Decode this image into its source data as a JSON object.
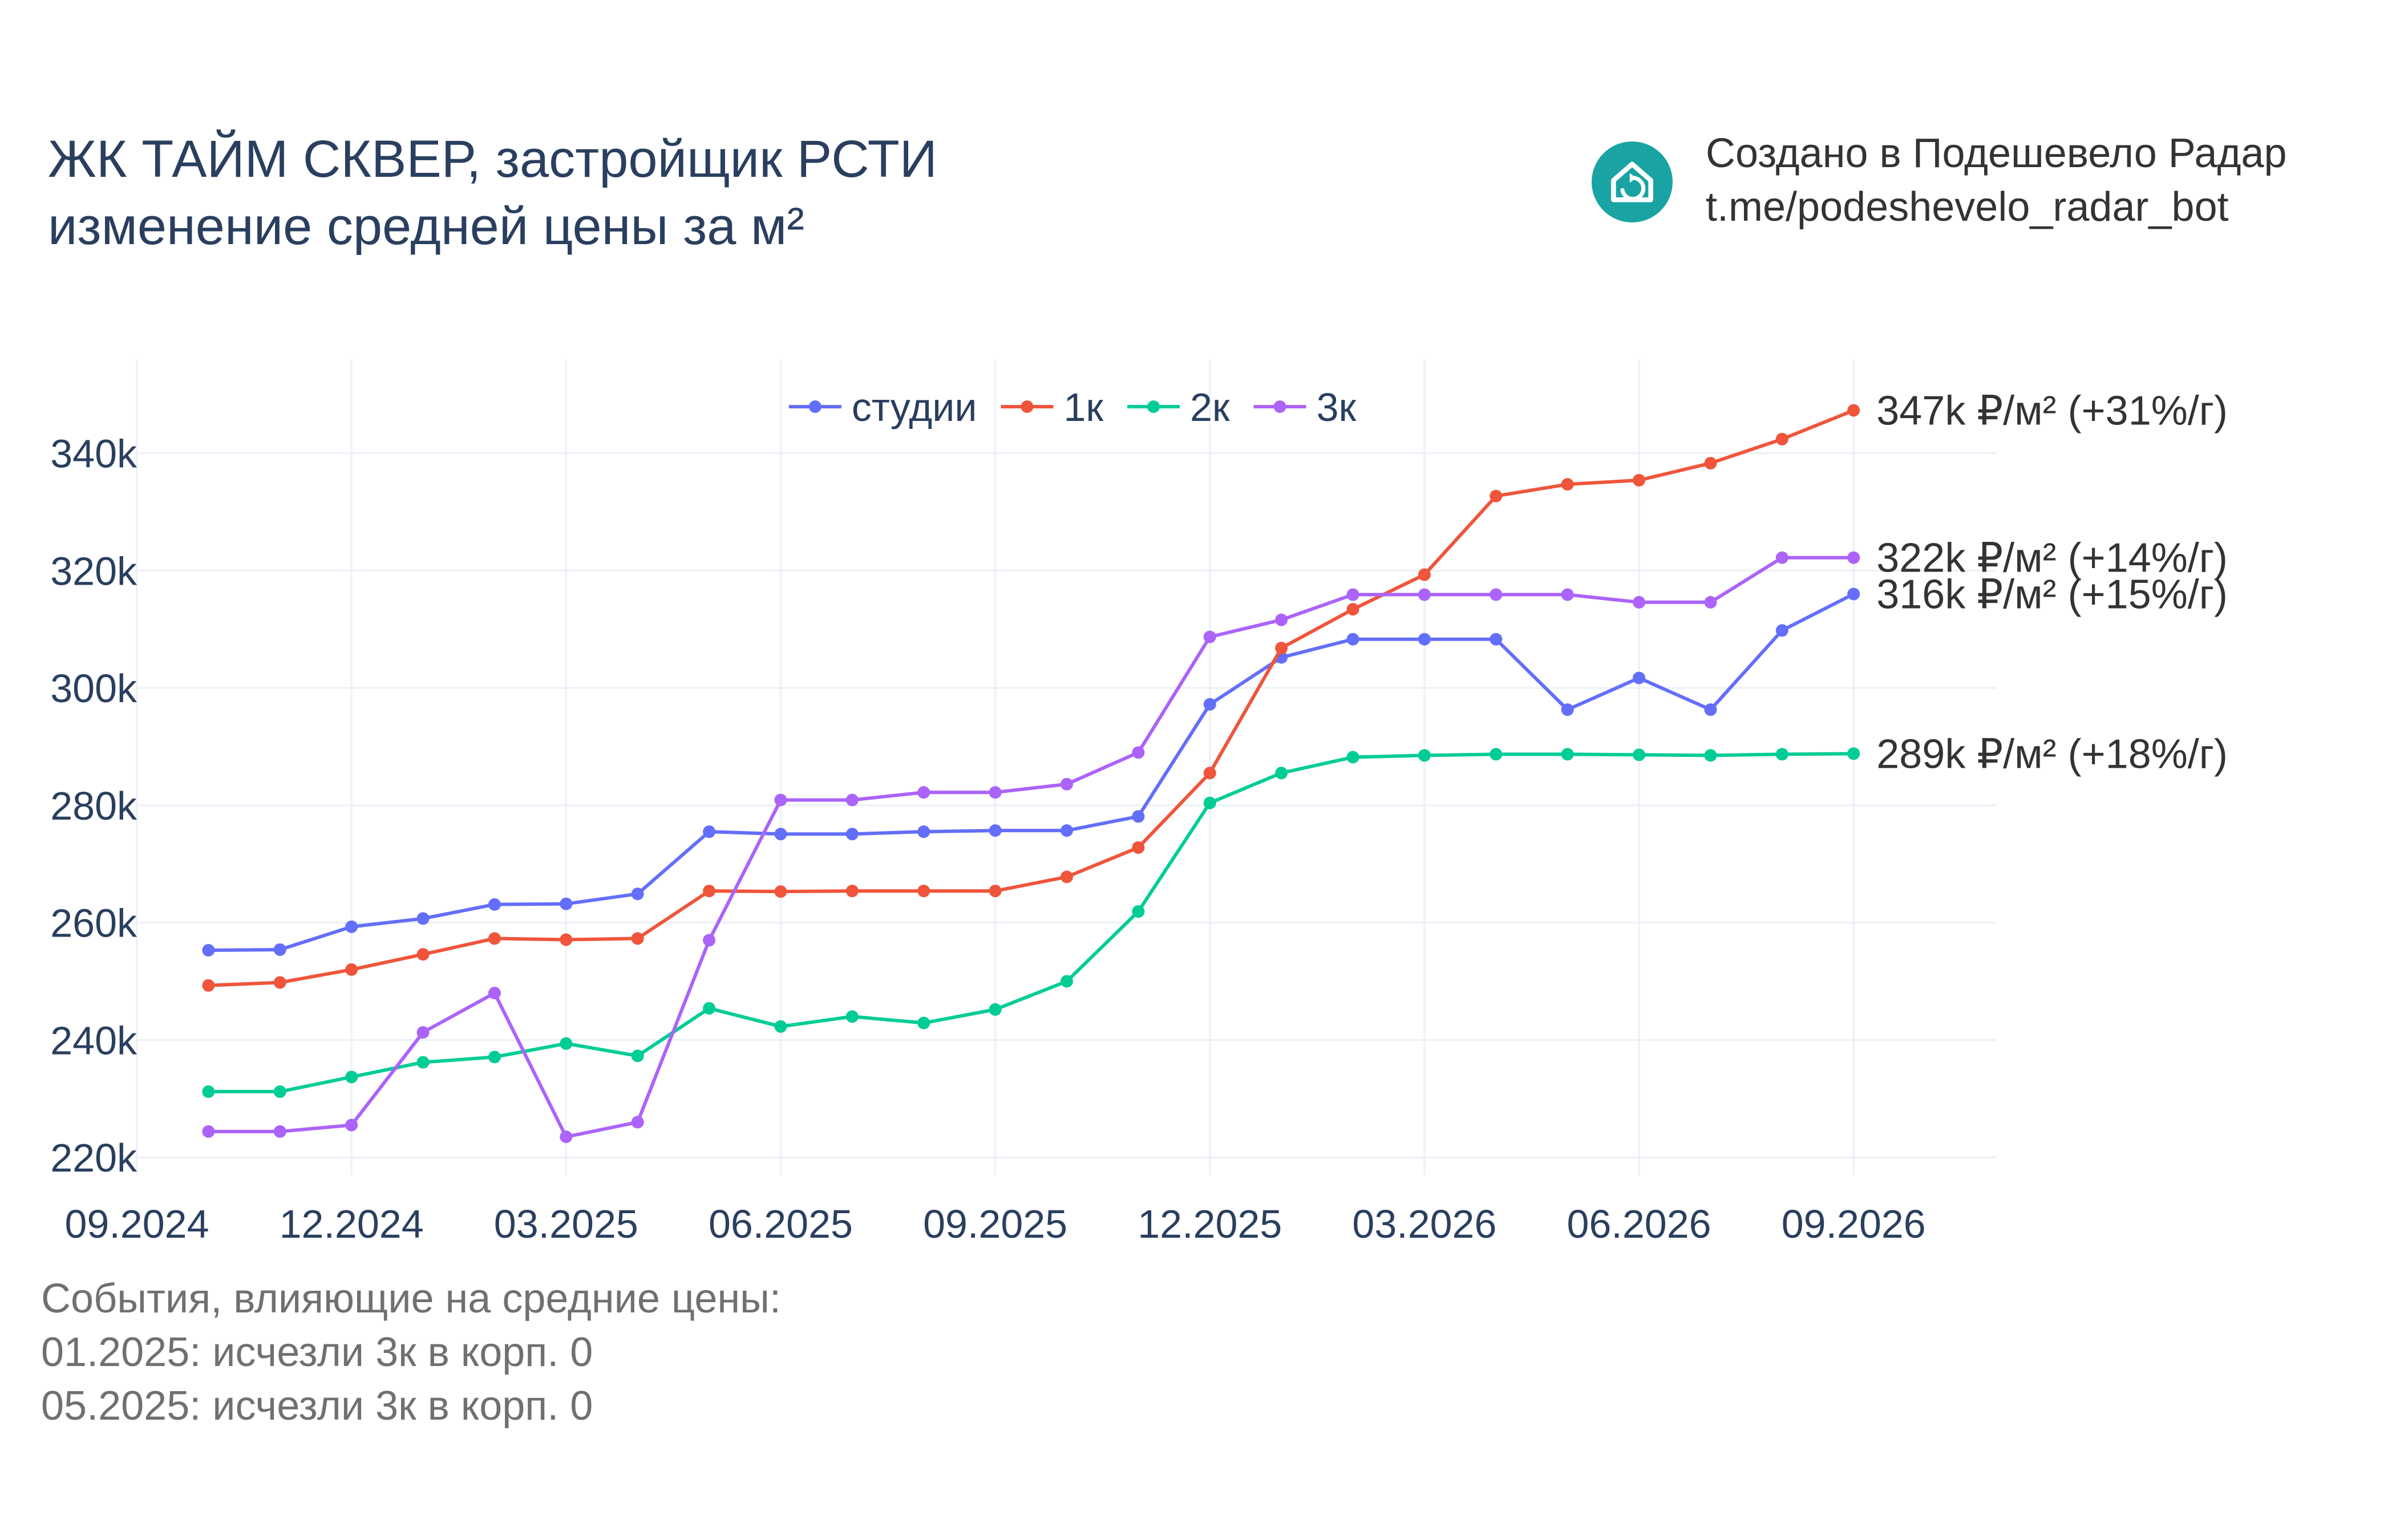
{
  "title": {
    "line1": "ЖК ТАЙМ СКВЕР, застройщик РСТИ",
    "line2": "изменение средней цены за м²"
  },
  "brand": {
    "line1": "Создано в Подешевело Радар",
    "line2": "t.me/podeshevelo_radar_bot",
    "icon": "house-icon",
    "color": "#1aa3a3"
  },
  "events": {
    "heading": "События, влияющие на средние цены:",
    "items": [
      "01.2025: исчезли 3к в корп. 0",
      "05.2025: исчезли 3к в корп. 0"
    ]
  },
  "chart_data": {
    "type": "line",
    "x": [
      "2024-10",
      "2024-11",
      "2024-12",
      "2025-01",
      "2025-02",
      "2025-03",
      "2025-04",
      "2025-05",
      "2025-06",
      "2025-07",
      "2025-08",
      "2025-09",
      "2025-10",
      "2025-11",
      "2025-12",
      "2026-01",
      "2026-02",
      "2026-03",
      "2026-04",
      "2026-05",
      "2026-06",
      "2026-07",
      "2026-08",
      "2026-09"
    ],
    "x_ticks": [
      {
        "x": "2024-09",
        "label": "09.2024"
      },
      {
        "x": "2024-12",
        "label": "12.2024"
      },
      {
        "x": "2025-03",
        "label": "03.2025"
      },
      {
        "x": "2025-06",
        "label": "06.2025"
      },
      {
        "x": "2025-09",
        "label": "09.2025"
      },
      {
        "x": "2025-12",
        "label": "12.2025"
      },
      {
        "x": "2026-03",
        "label": "03.2026"
      },
      {
        "x": "2026-06",
        "label": "06.2026"
      },
      {
        "x": "2026-09",
        "label": "09.2026"
      }
    ],
    "y_ticks": [
      {
        "value": 220000,
        "label": "220k"
      },
      {
        "value": 240000,
        "label": "240k"
      },
      {
        "value": 260000,
        "label": "260k"
      },
      {
        "value": 280000,
        "label": "280k"
      },
      {
        "value": 300000,
        "label": "300k"
      },
      {
        "value": 320000,
        "label": "320k"
      },
      {
        "value": 340000,
        "label": "340k"
      }
    ],
    "xlim": [
      "2024-09",
      "2026-11"
    ],
    "ylim": [
      217000,
      356000
    ],
    "grid": true,
    "legend_position": "top-center",
    "series": [
      {
        "name": "студии",
        "color": "#636efa",
        "values": [
          255300,
          255400,
          259300,
          260700,
          263100,
          263200,
          264900,
          275500,
          275100,
          275100,
          275500,
          275700,
          275700,
          278100,
          297200,
          305200,
          308300,
          308300,
          308300,
          296300,
          301700,
          296300,
          309800,
          316000
        ],
        "end_label": "316k ₽/м² (+15%/г)"
      },
      {
        "name": "1к",
        "color": "#ef553b",
        "values": [
          249300,
          249800,
          252000,
          254600,
          257300,
          257100,
          257300,
          265400,
          265300,
          265400,
          265400,
          265400,
          267800,
          272800,
          285500,
          306800,
          313400,
          319300,
          332700,
          334700,
          335400,
          338300,
          342400,
          347300
        ],
        "end_label": "347k ₽/м² (+31%/г)"
      },
      {
        "name": "2к",
        "color": "#00cc96",
        "values": [
          231200,
          231200,
          233700,
          236200,
          237100,
          239400,
          237300,
          245400,
          242300,
          244000,
          242900,
          245200,
          250000,
          261900,
          280400,
          285500,
          288200,
          288500,
          288700,
          288700,
          288600,
          288500,
          288700,
          288800
        ],
        "end_label": "289k ₽/м² (+18%/г)"
      },
      {
        "name": "3к",
        "color": "#ab63fa",
        "values": [
          224400,
          224400,
          225500,
          241300,
          248000,
          223500,
          226000,
          257000,
          280900,
          280900,
          282200,
          282200,
          283600,
          289000,
          308700,
          311600,
          315900,
          315900,
          315900,
          315900,
          314600,
          314600,
          322200,
          322200
        ],
        "end_label": "322k ₽/м² (+14%/г)"
      }
    ]
  }
}
